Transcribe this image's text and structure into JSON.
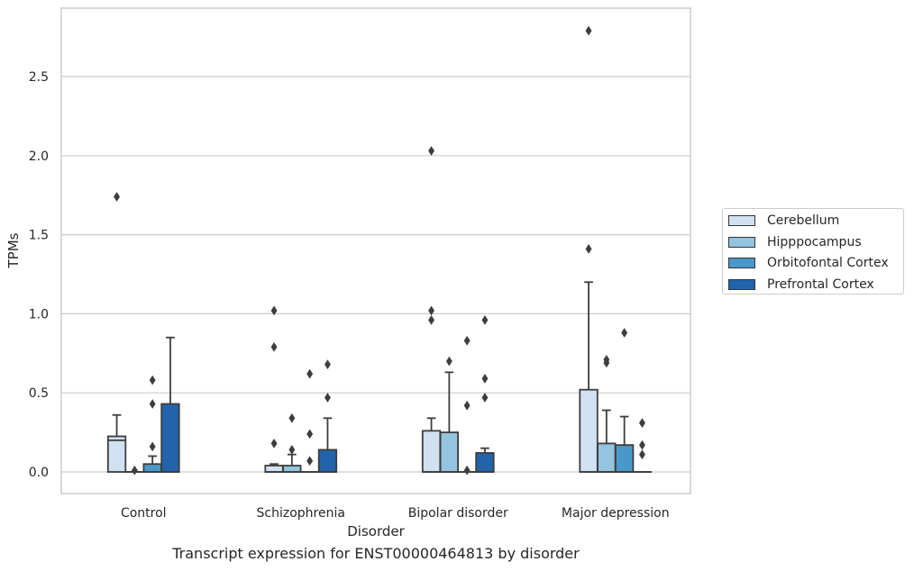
{
  "chart_data": {
    "type": "box",
    "caption": "Transcript expression for ENST00000464813 by disorder",
    "xlabel": "Disorder",
    "ylabel": "TPMs",
    "ylim": [
      -0.13,
      2.95
    ],
    "yticks": [
      "0.0",
      "0.5",
      "1.0",
      "1.5",
      "2.0",
      "2.5"
    ],
    "categories": [
      "Control",
      "Schizophrenia",
      "Bipolar disorder",
      "Major depression"
    ],
    "legend_position": "right",
    "grid": "horizontal",
    "series": [
      {
        "name": "Cerebellum",
        "color": "#d0e1f2",
        "boxes": [
          {
            "q1": 0.0,
            "median": 0.2,
            "q3": 0.225,
            "whislo": 0.0,
            "whishi": 0.36,
            "fliers": [
              1.74
            ]
          },
          {
            "q1": 0.0,
            "median": 0.0,
            "q3": 0.04,
            "whislo": 0.0,
            "whishi": 0.05,
            "fliers": [
              0.18,
              0.79,
              1.02
            ]
          },
          {
            "q1": 0.0,
            "median": 0.0,
            "q3": 0.26,
            "whislo": 0.0,
            "whishi": 0.34,
            "fliers": [
              0.96,
              1.02,
              2.03
            ]
          },
          {
            "q1": 0.0,
            "median": 0.0,
            "q3": 0.52,
            "whislo": 0.0,
            "whishi": 1.2,
            "fliers": [
              1.41,
              2.79
            ]
          }
        ]
      },
      {
        "name": "Hipppocampus",
        "color": "#94c4df",
        "boxes": [
          {
            "q1": 0.0,
            "median": 0.0,
            "q3": 0.0,
            "whislo": 0.0,
            "whishi": 0.0,
            "fliers": [
              0.01
            ]
          },
          {
            "q1": 0.0,
            "median": 0.0,
            "q3": 0.04,
            "whislo": 0.0,
            "whishi": 0.11,
            "fliers": [
              0.14,
              0.34
            ]
          },
          {
            "q1": 0.0,
            "median": 0.0,
            "q3": 0.25,
            "whislo": 0.0,
            "whishi": 0.63,
            "fliers": [
              0.7
            ]
          },
          {
            "q1": 0.0,
            "median": 0.0,
            "q3": 0.18,
            "whislo": 0.0,
            "whishi": 0.39,
            "fliers": [
              0.69,
              0.71
            ]
          }
        ]
      },
      {
        "name": "Orbitofontal Cortex",
        "color": "#4a98c9",
        "boxes": [
          {
            "q1": 0.0,
            "median": 0.0,
            "q3": 0.05,
            "whislo": 0.0,
            "whishi": 0.1,
            "fliers": [
              0.16,
              0.43,
              0.58
            ]
          },
          {
            "q1": 0.0,
            "median": 0.0,
            "q3": 0.0,
            "whislo": 0.0,
            "whishi": 0.0,
            "fliers": [
              0.07,
              0.24,
              0.62
            ]
          },
          {
            "q1": 0.0,
            "median": 0.0,
            "q3": 0.0,
            "whislo": 0.0,
            "whishi": 0.0,
            "fliers": [
              0.01,
              0.42,
              0.83
            ]
          },
          {
            "q1": 0.0,
            "median": 0.0,
            "q3": 0.17,
            "whislo": 0.0,
            "whishi": 0.35,
            "fliers": [
              0.88
            ]
          }
        ]
      },
      {
        "name": "Prefrontal Cortex",
        "color": "#2164ab",
        "boxes": [
          {
            "q1": 0.0,
            "median": 0.0,
            "q3": 0.43,
            "whislo": 0.0,
            "whishi": 0.85,
            "fliers": []
          },
          {
            "q1": 0.0,
            "median": 0.0,
            "q3": 0.14,
            "whislo": 0.0,
            "whishi": 0.34,
            "fliers": [
              0.47,
              0.68
            ]
          },
          {
            "q1": 0.0,
            "median": 0.0,
            "q3": 0.12,
            "whislo": 0.0,
            "whishi": 0.15,
            "fliers": [
              0.47,
              0.59,
              0.96
            ]
          },
          {
            "q1": 0.0,
            "median": 0.0,
            "q3": 0.0,
            "whislo": 0.0,
            "whishi": 0.0,
            "fliers": [
              0.11,
              0.17,
              0.31
            ]
          }
        ]
      }
    ]
  }
}
